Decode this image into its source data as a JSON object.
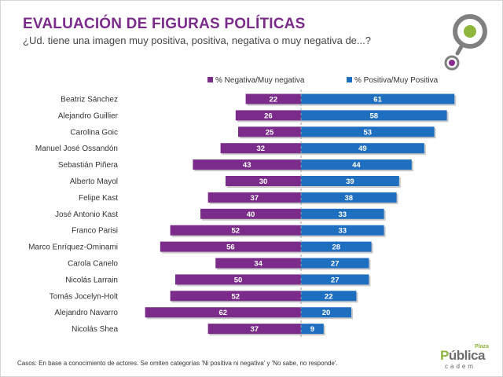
{
  "header": {
    "title": "EVALUACIÓN DE FIGURAS POLÍTICAS",
    "subtitle": "¿Ud. tiene una imagen muy positiva, positiva, negativa o muy negativa de...?"
  },
  "footer": {
    "note": "Casos: En base a conocimiento de actores. Se omiten categorías 'Ni positiva ni negativa' y 'No sabe, no responde'."
  },
  "brand": {
    "plaza": "Plaza",
    "name_part1": "P",
    "name_part2": "ública",
    "sub": "cadem"
  },
  "colors": {
    "title": "#7b2c8b",
    "negative": "#7b2c8b",
    "positive": "#1f6fc1",
    "logo_green": "#8db53c",
    "logo_purple": "#8a2c8e"
  },
  "chart_data": {
    "type": "bar",
    "orientation": "horizontal-diverging",
    "legend_position": "top",
    "categories": [
      "Beatriz Sánchez",
      "Alejandro Guillier",
      "Carolina Goic",
      "Manuel José Ossandón",
      "Sebastián Piñera",
      "Alberto Mayol",
      "Felipe Kast",
      "José Antonio Kast",
      "Franco Parisi",
      "Marco Enríquez-Ominami",
      "Carola Canelo",
      "Nicolás Larrain",
      "Tomás Jocelyn-Holt",
      "Alejandro Navarro",
      "Nicolás Shea"
    ],
    "series": [
      {
        "name": "% Negativa/Muy negativa",
        "color": "#7b2c8b",
        "values": [
          22,
          26,
          25,
          32,
          43,
          30,
          37,
          40,
          52,
          56,
          34,
          50,
          52,
          62,
          37
        ]
      },
      {
        "name": "% Positiva/Muy Positiva",
        "color": "#1f6fc1",
        "values": [
          61,
          58,
          53,
          49,
          44,
          39,
          38,
          33,
          33,
          28,
          27,
          27,
          22,
          20,
          9
        ]
      }
    ]
  }
}
